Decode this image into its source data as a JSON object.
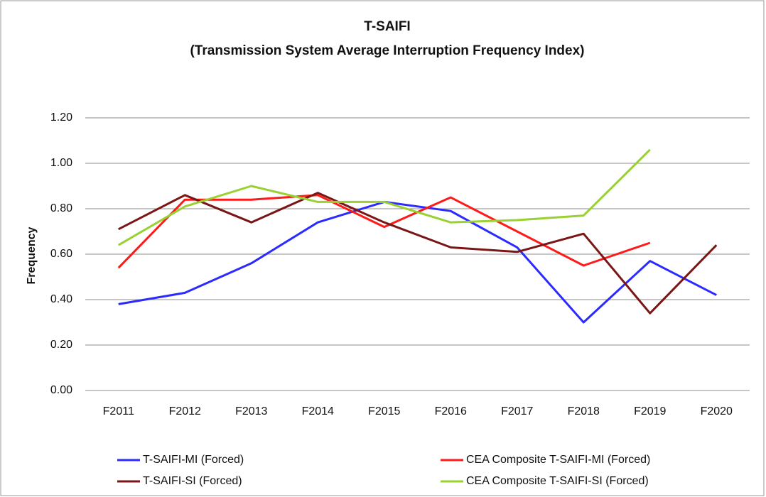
{
  "chart_data": {
    "type": "line",
    "title": "T-SAIFI",
    "subtitle": "(Transmission System Average Interruption Frequency Index)",
    "y_label": "Frequency",
    "categories": [
      "F2011",
      "F2012",
      "F2013",
      "F2014",
      "F2015",
      "F2016",
      "F2017",
      "F2018",
      "F2019",
      "F2020"
    ],
    "series": [
      {
        "name": "T-SAIFI-MI (Forced)",
        "color": "#2b2bff",
        "values": [
          0.38,
          0.43,
          0.56,
          0.74,
          0.83,
          0.79,
          0.63,
          0.3,
          0.57,
          0.42
        ]
      },
      {
        "name": "CEA Composite T-SAIFI-MI (Forced)",
        "color": "#ff1a1a",
        "values": [
          0.54,
          0.84,
          0.84,
          0.86,
          0.72,
          0.85,
          0.7,
          0.55,
          0.65,
          null
        ]
      },
      {
        "name": "T-SAIFI-SI (Forced)",
        "color": "#7a1616",
        "values": [
          0.71,
          0.86,
          0.74,
          0.87,
          0.74,
          0.63,
          0.61,
          0.69,
          0.34,
          0.64
        ]
      },
      {
        "name": "CEA Composite T-SAIFI-SI (Forced)",
        "color": "#99d133",
        "values": [
          0.64,
          0.81,
          0.9,
          0.83,
          0.83,
          0.74,
          0.75,
          0.77,
          1.06,
          null
        ]
      }
    ],
    "ylim": [
      0,
      1.2
    ],
    "yticks": [
      {
        "value": 0,
        "label": "0.00"
      },
      {
        "value": 0.2,
        "label": "0.20"
      },
      {
        "value": 0.4,
        "label": "0.40"
      },
      {
        "value": 0.6,
        "label": "0.60"
      },
      {
        "value": 0.8,
        "label": "0.80"
      },
      {
        "value": 1.0,
        "label": "1.00"
      },
      {
        "value": 1.2,
        "label": "1.20"
      }
    ],
    "grid": true,
    "legend": "bottom"
  }
}
